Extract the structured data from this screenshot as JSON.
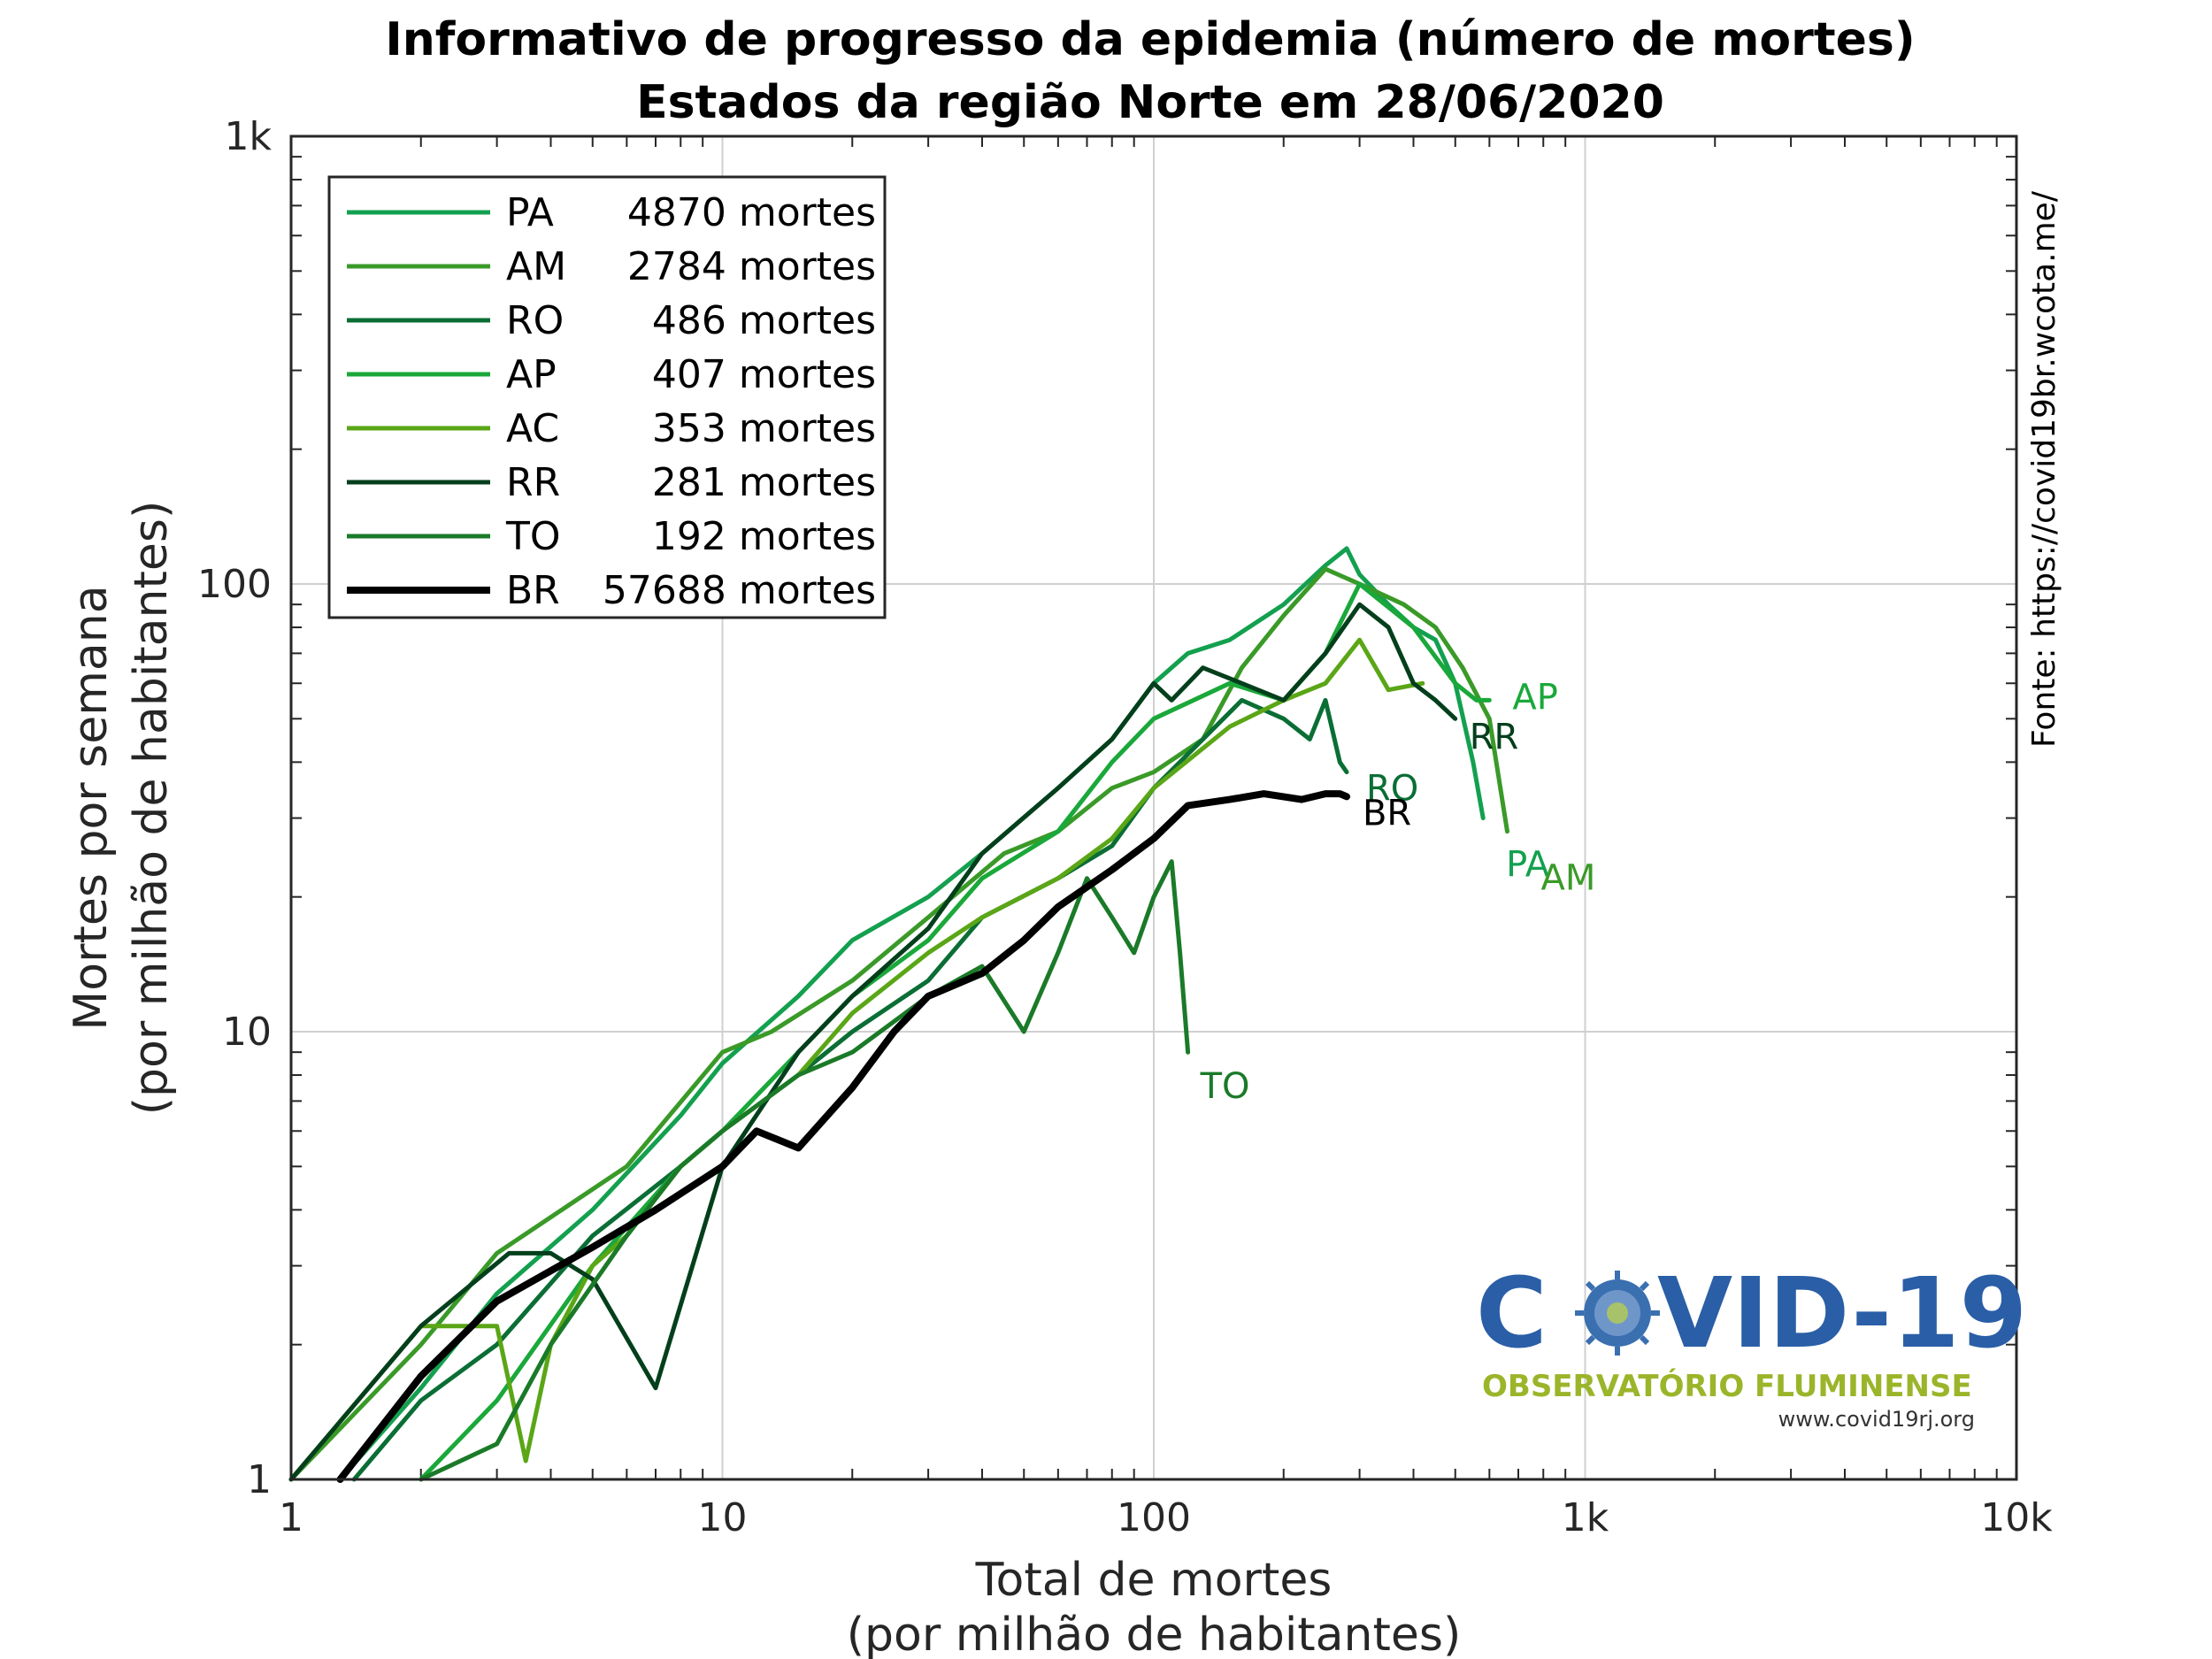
{
  "chart_data": {
    "type": "line",
    "title": "Informativo de progresso da epidemia (número de mortes)",
    "subtitle": "Estados da região Norte em 28/06/2020",
    "xlabel": "Total de mortes",
    "xlabel_sub": "(por milhão de habitantes)",
    "ylabel": "Mortes por semana",
    "ylabel_sub": "(por milhão de habitantes)",
    "x_scale": "log",
    "y_scale": "log",
    "xlim": [
      1,
      10000
    ],
    "ylim": [
      1,
      1000
    ],
    "x_ticks": [
      {
        "v": 1,
        "label": "1"
      },
      {
        "v": 10,
        "label": "10"
      },
      {
        "v": 100,
        "label": "100"
      },
      {
        "v": 1000,
        "label": "1k"
      },
      {
        "v": 10000,
        "label": "10k"
      }
    ],
    "y_ticks": [
      {
        "v": 1,
        "label": "1"
      },
      {
        "v": 10,
        "label": "10"
      },
      {
        "v": 100,
        "label": "100"
      },
      {
        "v": 1000,
        "label": "1k"
      }
    ],
    "grid": true,
    "legend_position": "top-left",
    "source": "Fonte: https://covid19br.wcota.me/",
    "series": [
      {
        "code": "PA",
        "deaths": "4870 mortes",
        "color": "#13a04f",
        "end_label": "PA",
        "x": [
          1.3,
          2,
          3,
          5,
          8,
          10,
          15,
          20,
          30,
          40,
          60,
          80,
          100,
          120,
          150,
          200,
          250,
          280,
          300,
          350,
          400,
          450,
          500,
          550,
          580
        ],
        "y": [
          1,
          1.6,
          2.6,
          4,
          6.5,
          8.5,
          12,
          16,
          20,
          25,
          35,
          45,
          60,
          70,
          75,
          90,
          110,
          120,
          105,
          90,
          80,
          75,
          60,
          40,
          30
        ]
      },
      {
        "code": "AM",
        "deaths": "2784 mortes",
        "color": "#3a9a28",
        "end_label": "AM",
        "x": [
          1,
          2,
          3,
          6,
          10,
          13,
          20,
          30,
          45,
          60,
          80,
          100,
          130,
          160,
          200,
          250,
          300,
          380,
          450,
          520,
          600,
          660
        ],
        "y": [
          1,
          2,
          3.2,
          5,
          9,
          10,
          13,
          18,
          25,
          28,
          35,
          38,
          45,
          65,
          85,
          108,
          100,
          90,
          80,
          65,
          50,
          28
        ]
      },
      {
        "code": "RO",
        "deaths": "486 mortes",
        "color": "#0a6e35",
        "end_label": "RO",
        "x": [
          1.4,
          2,
          3,
          5,
          8,
          10,
          15,
          20,
          30,
          40,
          60,
          80,
          100,
          130,
          160,
          200,
          230,
          250,
          270,
          280
        ],
        "y": [
          1,
          1.5,
          2,
          3.5,
          5,
          6,
          8,
          10,
          13,
          18,
          22,
          26,
          35,
          45,
          55,
          50,
          45,
          55,
          40,
          38
        ]
      },
      {
        "code": "AP",
        "deaths": "407 mortes",
        "color": "#1aa83a",
        "end_label": "AP",
        "x": [
          2,
          3,
          5,
          8,
          10,
          15,
          20,
          30,
          40,
          60,
          80,
          100,
          150,
          200,
          250,
          300,
          400,
          500,
          560,
          600
        ],
        "y": [
          1,
          1.5,
          3,
          5,
          6,
          9,
          12,
          16,
          22,
          28,
          40,
          50,
          60,
          55,
          70,
          100,
          80,
          60,
          55,
          55
        ]
      },
      {
        "code": "AC",
        "deaths": "353 mortes",
        "color": "#5aa616",
        "end_label": "",
        "x": [
          1,
          2,
          3,
          3.5,
          4,
          5,
          6,
          8,
          10,
          15,
          20,
          30,
          40,
          60,
          80,
          100,
          150,
          200,
          250,
          300,
          350,
          420
        ],
        "y": [
          1,
          2.2,
          2.2,
          1.1,
          2,
          3,
          3.5,
          5,
          6,
          8,
          11,
          15,
          18,
          22,
          27,
          35,
          48,
          55,
          60,
          75,
          58,
          60
        ]
      },
      {
        "code": "RR",
        "deaths": "281 mortes",
        "color": "#043f1c",
        "end_label": "RR",
        "x": [
          1,
          2,
          3.2,
          4,
          5,
          7,
          10,
          15,
          20,
          30,
          40,
          60,
          80,
          100,
          110,
          130,
          160,
          200,
          250,
          300,
          350,
          400,
          450,
          500
        ],
        "y": [
          1,
          2.2,
          3.2,
          3.2,
          2.8,
          1.6,
          5,
          9,
          12,
          17,
          25,
          35,
          45,
          60,
          55,
          65,
          60,
          55,
          70,
          90,
          80,
          60,
          55,
          50
        ]
      },
      {
        "code": "TO",
        "deaths": "192 mortes",
        "color": "#1a7a28",
        "end_label": "TO",
        "x": [
          2,
          3,
          4,
          6,
          8,
          10,
          15,
          20,
          30,
          40,
          50,
          60,
          70,
          80,
          90,
          100,
          110,
          115,
          120
        ],
        "y": [
          1,
          1.2,
          2,
          3.5,
          5,
          6,
          8,
          9,
          12,
          14,
          10,
          15,
          22,
          18,
          15,
          20,
          24,
          15,
          9
        ]
      },
      {
        "code": "BR",
        "deaths": "57688 mortes",
        "color": "#000000",
        "end_label": "BR",
        "x": [
          1.3,
          2,
          3,
          5,
          7,
          10,
          12,
          15,
          20,
          25,
          30,
          40,
          50,
          60,
          80,
          100,
          120,
          150,
          180,
          220,
          250,
          270,
          280
        ],
        "y": [
          1,
          1.7,
          2.5,
          3.3,
          4,
          5,
          6,
          5.5,
          7.5,
          10,
          12,
          13.5,
          16,
          19,
          23,
          27,
          32,
          33,
          34,
          33,
          34,
          34,
          33.5
        ]
      }
    ]
  },
  "logo": {
    "text_left": "C",
    "text_right": "VID-19",
    "subtitle": "OBSERVATÓRIO FLUMINENSE",
    "url": "www.covid19rj.org"
  }
}
